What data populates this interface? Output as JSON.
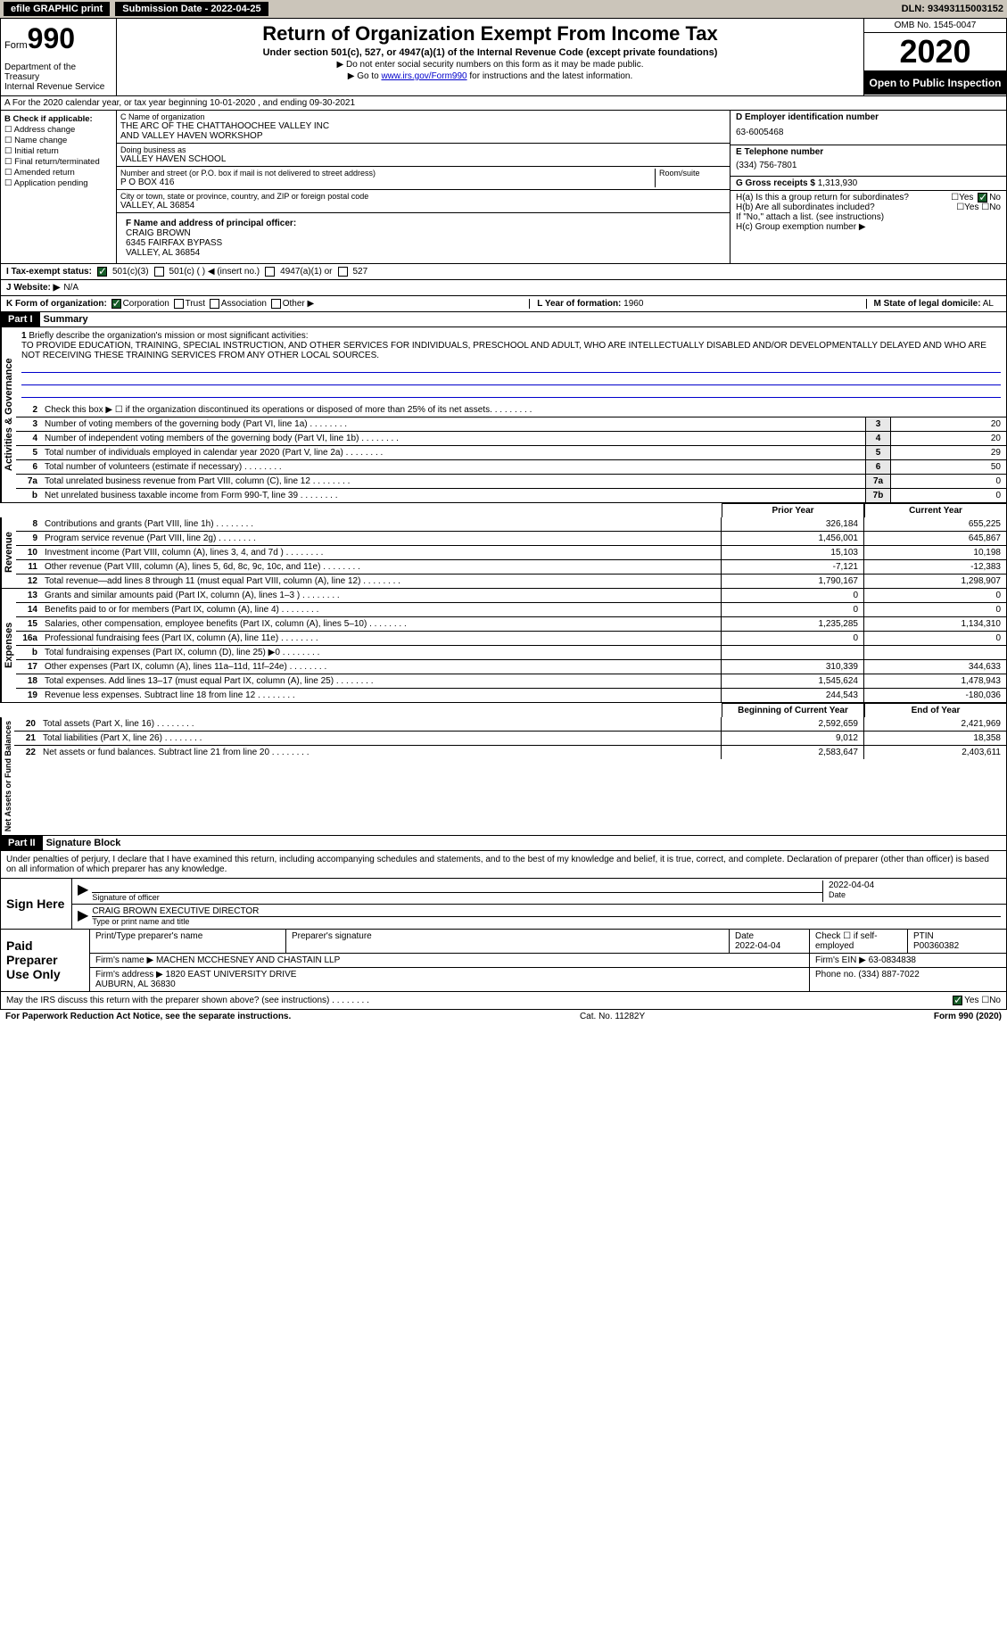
{
  "topbar": {
    "efile": "efile GRAPHIC print",
    "subdate_label": "Submission Date - 2022-04-25",
    "dln": "DLN: 93493115003152"
  },
  "header": {
    "form_label": "Form",
    "form_num": "990",
    "dept": "Department of the Treasury\nInternal Revenue Service",
    "title": "Return of Organization Exempt From Income Tax",
    "subtitle": "Under section 501(c), 527, or 4947(a)(1) of the Internal Revenue Code (except private foundations)",
    "ssn_note": "▶ Do not enter social security numbers on this form as it may be made public.",
    "goto": "▶ Go to www.irs.gov/Form990 for instructions and the latest information.",
    "omb": "OMB No. 1545-0047",
    "year": "2020",
    "otp": "Open to Public Inspection"
  },
  "period": "A For the 2020 calendar year, or tax year beginning 10-01-2020   , and ending 09-30-2021",
  "box_b": {
    "label": "B Check if applicable:",
    "addr": "Address change",
    "name": "Name change",
    "init": "Initial return",
    "final": "Final return/terminated",
    "amend": "Amended return",
    "app": "Application pending"
  },
  "box_c": {
    "label": "C Name of organization",
    "name": "THE ARC OF THE CHATTAHOOCHEE VALLEY INC\nAND VALLEY HAVEN WORKSHOP",
    "dba_label": "Doing business as",
    "dba": "VALLEY HAVEN SCHOOL",
    "addr_label": "Number and street (or P.O. box if mail is not delivered to street address)",
    "addr": "P O BOX 416",
    "room_label": "Room/suite",
    "city_label": "City or town, state or province, country, and ZIP or foreign postal code",
    "city": "VALLEY, AL  36854"
  },
  "box_d": {
    "label": "D Employer identification number",
    "val": "63-6005468"
  },
  "box_e": {
    "label": "E Telephone number",
    "val": "(334) 756-7801"
  },
  "box_g": {
    "label": "G Gross receipts $",
    "val": "1,313,930"
  },
  "box_f": {
    "label": "F Name and address of principal officer:",
    "name": "CRAIG BROWN",
    "addr": "6345 FAIRFAX BYPASS\nVALLEY, AL  36854"
  },
  "box_h": {
    "ha": "H(a)  Is this a group return for subordinates?",
    "hb": "H(b)  Are all subordinates included?",
    "hb_note": "If \"No,\" attach a list. (see instructions)",
    "hc": "H(c)  Group exemption number ▶"
  },
  "box_i": {
    "label": "I  Tax-exempt status:",
    "opt1": "501(c)(3)",
    "opt2": "501(c) (  ) ◀ (insert no.)",
    "opt3": "4947(a)(1) or",
    "opt4": "527"
  },
  "box_j": {
    "label": "J  Website: ▶",
    "val": "N/A"
  },
  "box_k": {
    "label": "K Form of organization:",
    "corp": "Corporation",
    "trust": "Trust",
    "assoc": "Association",
    "other": "Other ▶"
  },
  "box_l": {
    "label": "L Year of formation:",
    "val": "1960"
  },
  "box_m": {
    "label": "M State of legal domicile:",
    "val": "AL"
  },
  "part1": {
    "label": "Part I",
    "title": "Summary"
  },
  "mission": {
    "num": "1",
    "label": "Briefly describe the organization's mission or most significant activities:",
    "text": "TO PROVIDE EDUCATION, TRAINING, SPECIAL INSTRUCTION, AND OTHER SERVICES FOR INDIVIDUALS, PRESCHOOL AND ADULT, WHO ARE INTELLECTUALLY DISABLED AND/OR DEVELOPMENTALLY DELAYED AND WHO ARE NOT RECEIVING THESE TRAINING SERVICES FROM ANY OTHER LOCAL SOURCES."
  },
  "gov_lines": [
    {
      "n": "2",
      "d": "Check this box ▶ ☐ if the organization discontinued its operations or disposed of more than 25% of its net assets."
    },
    {
      "n": "3",
      "d": "Number of voting members of the governing body (Part VI, line 1a)",
      "c": "3",
      "v": "20"
    },
    {
      "n": "4",
      "d": "Number of independent voting members of the governing body (Part VI, line 1b)",
      "c": "4",
      "v": "20"
    },
    {
      "n": "5",
      "d": "Total number of individuals employed in calendar year 2020 (Part V, line 2a)",
      "c": "5",
      "v": "29"
    },
    {
      "n": "6",
      "d": "Total number of volunteers (estimate if necessary)",
      "c": "6",
      "v": "50"
    },
    {
      "n": "7a",
      "d": "Total unrelated business revenue from Part VIII, column (C), line 12",
      "c": "7a",
      "v": "0"
    },
    {
      "n": "b",
      "d": "Net unrelated business taxable income from Form 990-T, line 39",
      "c": "7b",
      "v": "0"
    }
  ],
  "col_hdrs": {
    "prior": "Prior Year",
    "current": "Current Year",
    "begin": "Beginning of Current Year",
    "end": "End of Year"
  },
  "revenue": [
    {
      "n": "8",
      "d": "Contributions and grants (Part VIII, line 1h)",
      "p": "326,184",
      "c": "655,225"
    },
    {
      "n": "9",
      "d": "Program service revenue (Part VIII, line 2g)",
      "p": "1,456,001",
      "c": "645,867"
    },
    {
      "n": "10",
      "d": "Investment income (Part VIII, column (A), lines 3, 4, and 7d )",
      "p": "15,103",
      "c": "10,198"
    },
    {
      "n": "11",
      "d": "Other revenue (Part VIII, column (A), lines 5, 6d, 8c, 9c, 10c, and 11e)",
      "p": "-7,121",
      "c": "-12,383"
    },
    {
      "n": "12",
      "d": "Total revenue—add lines 8 through 11 (must equal Part VIII, column (A), line 12)",
      "p": "1,790,167",
      "c": "1,298,907"
    }
  ],
  "expenses": [
    {
      "n": "13",
      "d": "Grants and similar amounts paid (Part IX, column (A), lines 1–3 )",
      "p": "0",
      "c": "0"
    },
    {
      "n": "14",
      "d": "Benefits paid to or for members (Part IX, column (A), line 4)",
      "p": "0",
      "c": "0"
    },
    {
      "n": "15",
      "d": "Salaries, other compensation, employee benefits (Part IX, column (A), lines 5–10)",
      "p": "1,235,285",
      "c": "1,134,310"
    },
    {
      "n": "16a",
      "d": "Professional fundraising fees (Part IX, column (A), line 11e)",
      "p": "0",
      "c": "0"
    },
    {
      "n": "b",
      "d": "Total fundraising expenses (Part IX, column (D), line 25) ▶0",
      "p": "",
      "c": ""
    },
    {
      "n": "17",
      "d": "Other expenses (Part IX, column (A), lines 11a–11d, 11f–24e)",
      "p": "310,339",
      "c": "344,633"
    },
    {
      "n": "18",
      "d": "Total expenses. Add lines 13–17 (must equal Part IX, column (A), line 25)",
      "p": "1,545,624",
      "c": "1,478,943"
    },
    {
      "n": "19",
      "d": "Revenue less expenses. Subtract line 18 from line 12",
      "p": "244,543",
      "c": "-180,036"
    }
  ],
  "netassets": [
    {
      "n": "20",
      "d": "Total assets (Part X, line 16)",
      "p": "2,592,659",
      "c": "2,421,969"
    },
    {
      "n": "21",
      "d": "Total liabilities (Part X, line 26)",
      "p": "9,012",
      "c": "18,358"
    },
    {
      "n": "22",
      "d": "Net assets or fund balances. Subtract line 21 from line 20",
      "p": "2,583,647",
      "c": "2,403,611"
    }
  ],
  "vert": {
    "gov": "Activities & Governance",
    "rev": "Revenue",
    "exp": "Expenses",
    "net": "Net Assets or Fund Balances"
  },
  "part2": {
    "label": "Part II",
    "title": "Signature Block"
  },
  "sig": {
    "decl": "Under penalties of perjury, I declare that I have examined this return, including accompanying schedules and statements, and to the best of my knowledge and belief, it is true, correct, and complete. Declaration of preparer (other than officer) is based on all information of which preparer has any knowledge.",
    "sign_here": "Sign Here",
    "sig_officer": "Signature of officer",
    "date_label": "Date",
    "sig_date": "2022-04-04",
    "name_title": "CRAIG BROWN  EXECUTIVE DIRECTOR",
    "type_label": "Type or print name and title"
  },
  "prep": {
    "label": "Paid Preparer Use Only",
    "h1": "Print/Type preparer's name",
    "h2": "Preparer's signature",
    "h3": "Date",
    "h3v": "2022-04-04",
    "h4": "Check ☐ if self-employed",
    "h5": "PTIN",
    "h5v": "P00360382",
    "firm_name_l": "Firm's name    ▶",
    "firm_name": "MACHEN MCCHESNEY AND CHASTAIN LLP",
    "firm_ein_l": "Firm's EIN ▶",
    "firm_ein": "63-0834838",
    "firm_addr_l": "Firm's address ▶",
    "firm_addr": "1820 EAST UNIVERSITY DRIVE\nAUBURN, AL  36830",
    "phone_l": "Phone no.",
    "phone": "(334) 887-7022"
  },
  "irs_discuss": "May the IRS discuss this return with the preparer shown above? (see instructions)",
  "footer": {
    "left": "For Paperwork Reduction Act Notice, see the separate instructions.",
    "mid": "Cat. No. 11282Y",
    "right": "Form 990 (2020)"
  }
}
